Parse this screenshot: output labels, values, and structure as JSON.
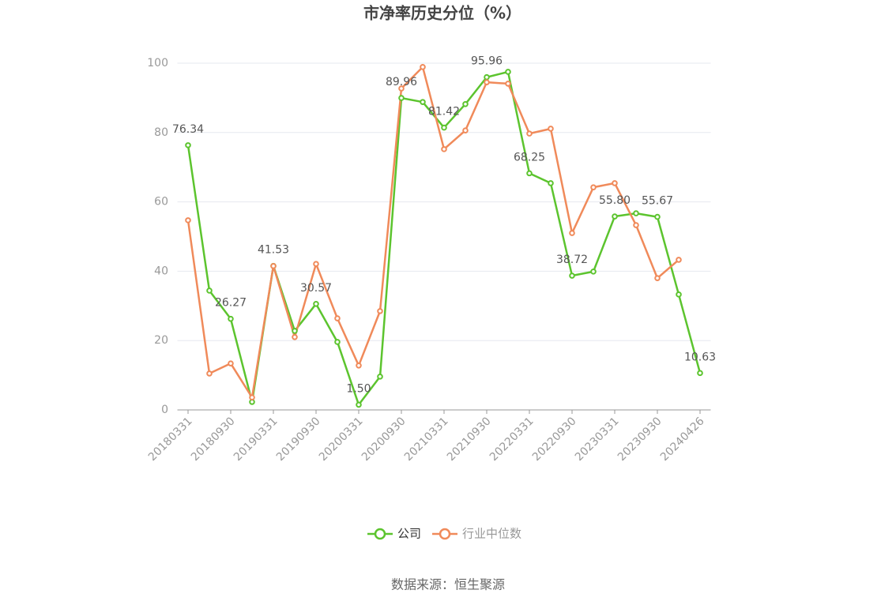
{
  "chart_data": {
    "type": "line",
    "title": "市净率历史分位（%）",
    "source": "数据来源：恒生聚源",
    "categories": [
      "20180331",
      null,
      "20180930",
      null,
      "20190331",
      null,
      "20190930",
      null,
      "20200331",
      null,
      "20200930",
      null,
      "20210331",
      null,
      "20210930",
      null,
      "20220331",
      null,
      "20220930",
      null,
      "20230331",
      null,
      "20230930",
      null,
      "20240426"
    ],
    "series": [
      {
        "name": "公司",
        "color": "#5cc42e",
        "values": [
          76.34,
          34.4,
          26.27,
          2.3,
          41.53,
          22.8,
          30.57,
          19.6,
          1.5,
          9.6,
          89.96,
          88.8,
          81.42,
          88.2,
          95.96,
          97.5,
          68.25,
          65.4,
          38.72,
          39.9,
          55.8,
          56.7,
          55.67,
          33.3,
          10.63
        ],
        "value_labels": [
          "76.34",
          null,
          "26.27",
          null,
          "41.53",
          null,
          "30.57",
          null,
          "1.50",
          null,
          "89.96",
          null,
          "81.42",
          null,
          "95.96",
          null,
          "68.25",
          null,
          "38.72",
          null,
          "55.80",
          null,
          "55.67",
          null,
          "10.63"
        ]
      },
      {
        "name": "行业中位数",
        "color": "#f08a5a",
        "values": [
          54.7,
          10.5,
          13.4,
          3.6,
          41.5,
          21.0,
          42.1,
          26.4,
          12.8,
          28.5,
          92.7,
          98.9,
          75.2,
          80.6,
          94.5,
          94.1,
          79.7,
          81.1,
          51.0,
          64.2,
          65.4,
          53.3,
          38.0,
          43.3,
          null
        ]
      }
    ],
    "ylim": [
      0,
      100
    ],
    "yticks": [
      0,
      20,
      40,
      60,
      80,
      100
    ],
    "grid": true,
    "legend": "bottom"
  }
}
